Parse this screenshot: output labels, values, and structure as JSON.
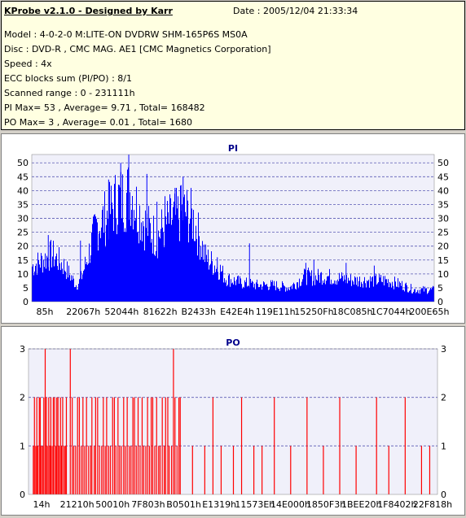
{
  "header": {
    "app_title": "KProbe v2.1.0 - Designed by Karr",
    "date": "Date : 2005/12/04 21:33:34",
    "lines": [
      "Model : 4-0-2-0 M:LITE-ON DVDRW SHM-165P6S MS0A",
      "Disc : DVD-R , CMC MAG. AE1 [CMC Magnetics Corporation]",
      "Speed : 4x",
      "ECC blocks sum (PI/PO) : 8/1",
      "Scanned range : 0 - 231111h",
      "PI Max= 53 , Average= 9.71 , Total= 168482",
      "PO Max= 3 , Average= 0.01 , Total= 1680"
    ]
  },
  "colors": {
    "pi_bar": "#0000ff",
    "po_bar": "#ff0000",
    "plot_bg": "#f0f0fa",
    "grid": "#5a5ab4"
  },
  "chart_data": [
    {
      "type": "bar",
      "title": "PI",
      "ylim": [
        0,
        53
      ],
      "yticks": [
        0,
        5,
        10,
        15,
        20,
        25,
        30,
        35,
        40,
        45,
        50
      ],
      "xtick_labels": [
        "85h",
        "22067h",
        "52044h",
        "81622h",
        "B2433h",
        "E42E4h",
        "119E11h",
        "15250Fh",
        "18C085h",
        "1C7044h",
        "200E65h"
      ],
      "grid": true,
      "envelope": {
        "x_fraction": [
          0,
          0.02,
          0.05,
          0.08,
          0.11,
          0.12,
          0.14,
          0.16,
          0.19,
          0.21,
          0.23,
          0.245,
          0.26,
          0.28,
          0.31,
          0.32,
          0.34,
          0.36,
          0.38,
          0.4,
          0.42,
          0.43,
          0.45,
          0.47,
          0.48,
          0.5,
          0.52,
          0.56,
          0.6,
          0.64,
          0.68,
          0.7,
          0.72,
          0.76,
          0.8,
          0.84,
          0.88,
          0.92,
          0.95,
          1.0
        ],
        "values": [
          15,
          17,
          20,
          15,
          7,
          9,
          20,
          32,
          37,
          43,
          44,
          47,
          40,
          33,
          27,
          30,
          34,
          36,
          38,
          35,
          25,
          19,
          16,
          13,
          10,
          9,
          8,
          7,
          7,
          6,
          11,
          10,
          11,
          10,
          9,
          9,
          9,
          7,
          5,
          5
        ]
      },
      "spikes": [
        [
          0.24,
          53
        ],
        [
          0.285,
          46
        ],
        [
          0.22,
          50
        ],
        [
          0.31,
          36
        ],
        [
          0.15,
          28
        ],
        [
          0.33,
          38
        ],
        [
          0.355,
          41
        ],
        [
          0.375,
          45
        ],
        [
          0.37,
          42
        ],
        [
          0.19,
          44
        ],
        [
          0.54,
          21
        ],
        [
          0.46,
          16
        ],
        [
          0.68,
          14
        ],
        [
          0.7,
          15
        ],
        [
          0.12,
          22
        ],
        [
          0.04,
          24
        ],
        [
          0.78,
          14
        ],
        [
          0.85,
          13
        ]
      ]
    },
    {
      "type": "bar",
      "title": "PO",
      "ylim": [
        0,
        3
      ],
      "yticks": [
        0,
        1,
        2,
        3
      ],
      "xtick_labels": [
        "14h",
        "21210h",
        "50010h",
        "7F803h",
        "B0501h",
        "E1319h",
        "11573Eh",
        "14E000h",
        "1850F3h",
        "1BEE20h",
        "1F8402h",
        "22F818h"
      ],
      "grid": true,
      "bars": [
        {
          "x": 0.01,
          "values": [
            1,
            2,
            1,
            2,
            1,
            2,
            2,
            1,
            1,
            2,
            3,
            2,
            1,
            2,
            1,
            2,
            1,
            2,
            2,
            1,
            2,
            2,
            1,
            2,
            1,
            2,
            1,
            1,
            2
          ]
        },
        {
          "x": 0.1,
          "values": [
            3,
            2,
            1,
            1,
            2,
            2,
            1,
            2,
            1,
            2,
            1,
            1,
            2,
            1,
            2,
            2,
            1,
            1,
            2,
            1,
            2,
            1,
            1,
            2,
            2,
            1,
            2,
            1,
            1,
            2,
            1,
            2,
            1,
            1,
            2,
            2,
            1,
            2,
            1,
            2,
            1,
            1,
            2,
            1,
            2,
            2,
            1,
            2,
            1,
            1,
            2,
            1,
            2,
            2,
            1,
            1,
            3,
            2,
            1,
            2
          ]
        },
        {
          "positions": [
            0.37,
            0.4,
            0.43,
            0.45,
            0.47,
            0.5,
            0.52,
            0.55,
            0.57,
            0.6,
            0.64,
            0.68,
            0.72,
            0.76,
            0.8,
            0.85,
            0.88,
            0.92,
            0.96,
            0.98
          ],
          "values": [
            2,
            1,
            1,
            2,
            1,
            1,
            2,
            1,
            1,
            2,
            1,
            2,
            1,
            2,
            1,
            2,
            1,
            2,
            1,
            1
          ]
        }
      ]
    }
  ]
}
